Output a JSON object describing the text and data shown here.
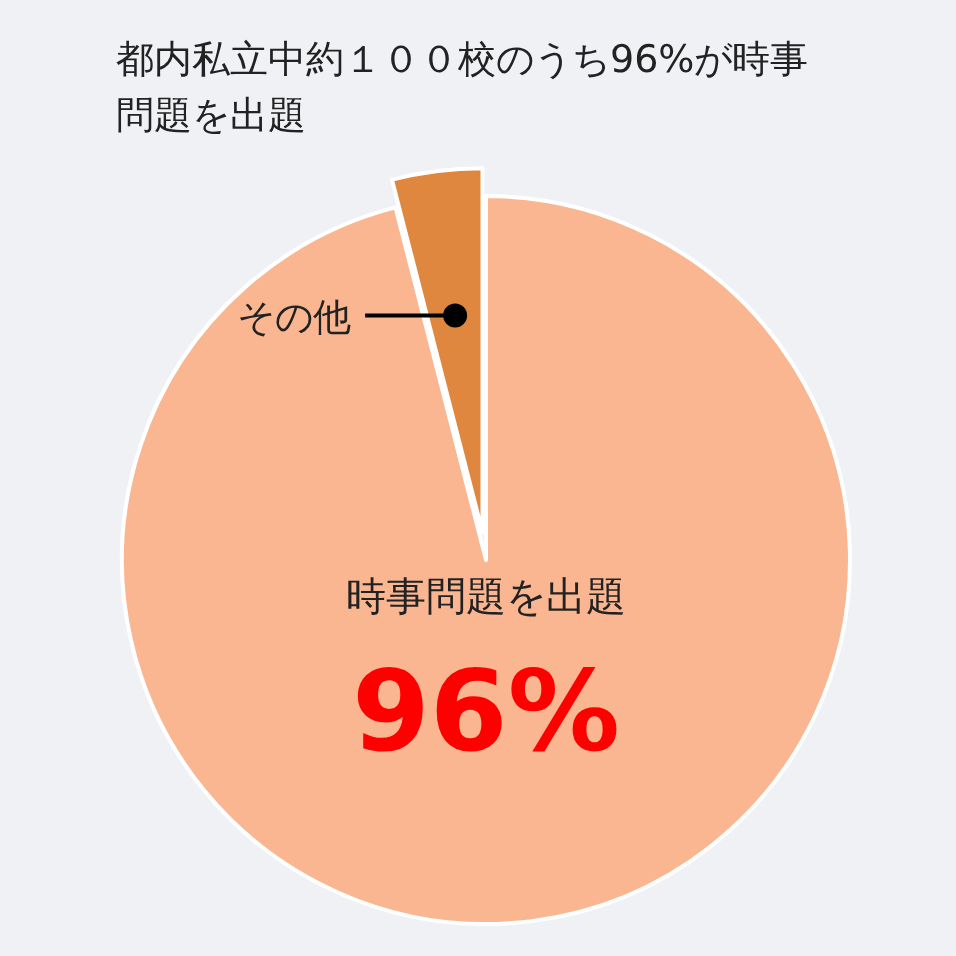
{
  "chart_data": {
    "type": "pie",
    "title": "都内私立中約１００校のうち96%が時事問題を出題",
    "categories": [
      "時事問題を出題",
      "その他"
    ],
    "values": [
      96,
      4
    ],
    "colors": [
      "#f9b691",
      "#e0873f"
    ],
    "value_labels": [
      "96%",
      null
    ]
  }
}
